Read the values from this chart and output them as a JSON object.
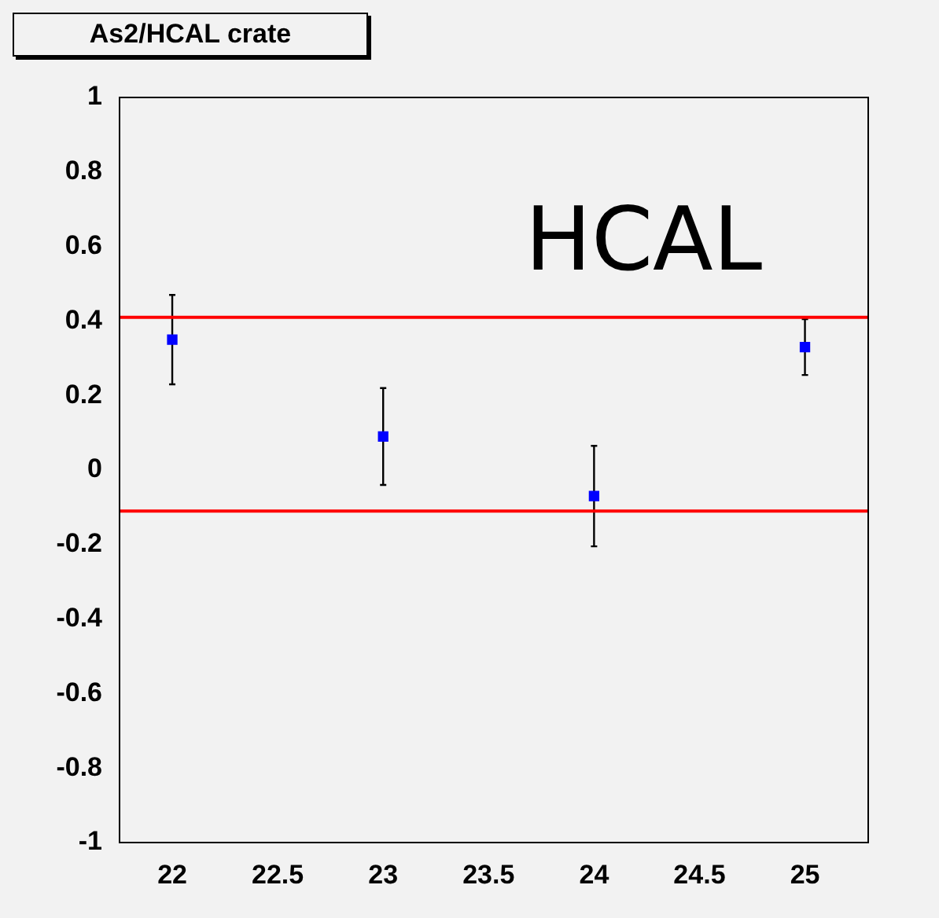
{
  "chart_data": {
    "type": "scatter",
    "title": "As2/HCAL crate",
    "annotations": [
      "HCAL"
    ],
    "x": [
      22,
      23,
      24,
      25
    ],
    "values": [
      0.35,
      0.09,
      -0.07,
      0.33
    ],
    "errors": [
      0.12,
      0.13,
      0.135,
      0.075
    ],
    "color": "#0000ff",
    "marker": "square",
    "xlim": [
      21.75,
      25.3
    ],
    "xticks": [
      22,
      22.5,
      23,
      23.5,
      24,
      24.5,
      25
    ],
    "ylim": [
      -1,
      1
    ],
    "yticks": [
      -1,
      -0.8,
      -0.6,
      -0.4,
      -0.2,
      0,
      0.2,
      0.4,
      0.6,
      0.8,
      1
    ],
    "ref_lines": [
      {
        "axis": "y",
        "value": 0.41,
        "color": "#ff0000"
      },
      {
        "axis": "y",
        "value": -0.11,
        "color": "#ff0000"
      }
    ],
    "grid": false,
    "legend": false
  }
}
